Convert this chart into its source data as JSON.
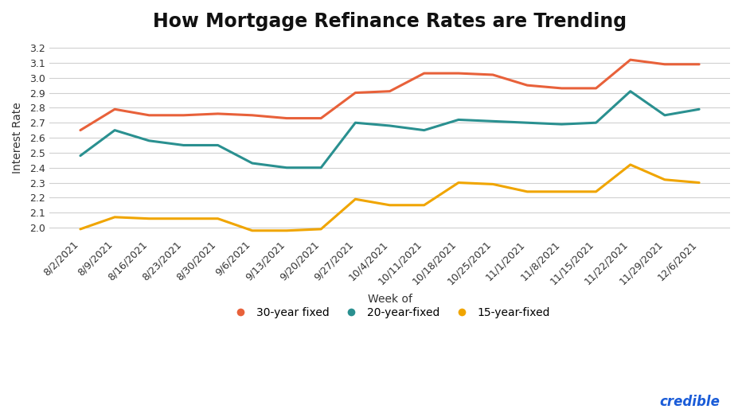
{
  "title": "How Mortgage Refinance Rates are Trending",
  "xlabel": "Week of",
  "ylabel": "Interest Rate",
  "categories": [
    "8/2/2021",
    "8/9/2021",
    "8/16/2021",
    "8/23/2021",
    "8/30/2021",
    "9/6/2021",
    "9/13/2021",
    "9/20/2021",
    "9/27/2021",
    "10/4/2021",
    "10/11/2021",
    "10/18/2021",
    "10/25/2021",
    "11/1/2021",
    "11/8/2021",
    "11/15/2021",
    "11/22/2021",
    "11/29/2021",
    "12/6/2021"
  ],
  "series": [
    {
      "label": "30-year fixed",
      "color": "#e8613a",
      "values": [
        2.65,
        2.79,
        2.75,
        2.75,
        2.76,
        2.75,
        2.73,
        2.73,
        2.9,
        2.91,
        3.03,
        3.03,
        3.02,
        2.95,
        2.93,
        2.93,
        3.12,
        3.09,
        3.09
      ]
    },
    {
      "label": "20-year-fixed",
      "color": "#2a9090",
      "values": [
        2.48,
        2.65,
        2.58,
        2.55,
        2.55,
        2.43,
        2.4,
        2.4,
        2.7,
        2.68,
        2.65,
        2.72,
        2.71,
        2.7,
        2.69,
        2.7,
        2.91,
        2.75,
        2.79
      ]
    },
    {
      "label": "15-year-fixed",
      "color": "#f0a500",
      "values": [
        1.99,
        2.07,
        2.06,
        2.06,
        2.06,
        1.98,
        1.98,
        1.99,
        2.19,
        2.15,
        2.15,
        2.3,
        2.29,
        2.24,
        2.24,
        2.24,
        2.42,
        2.32,
        2.3
      ]
    }
  ],
  "ylim": [
    1.95,
    3.25
  ],
  "yticks": [
    2.0,
    2.1,
    2.2,
    2.3,
    2.4,
    2.5,
    2.6,
    2.7,
    2.8,
    2.9,
    3.0,
    3.1,
    3.2
  ],
  "background_color": "#ffffff",
  "grid_color": "#d0d0d0",
  "title_fontsize": 17,
  "label_fontsize": 10,
  "tick_fontsize": 9,
  "legend_fontsize": 10,
  "line_width": 2.2,
  "credible_color": "#1a5cd8",
  "credible_text": "credible"
}
